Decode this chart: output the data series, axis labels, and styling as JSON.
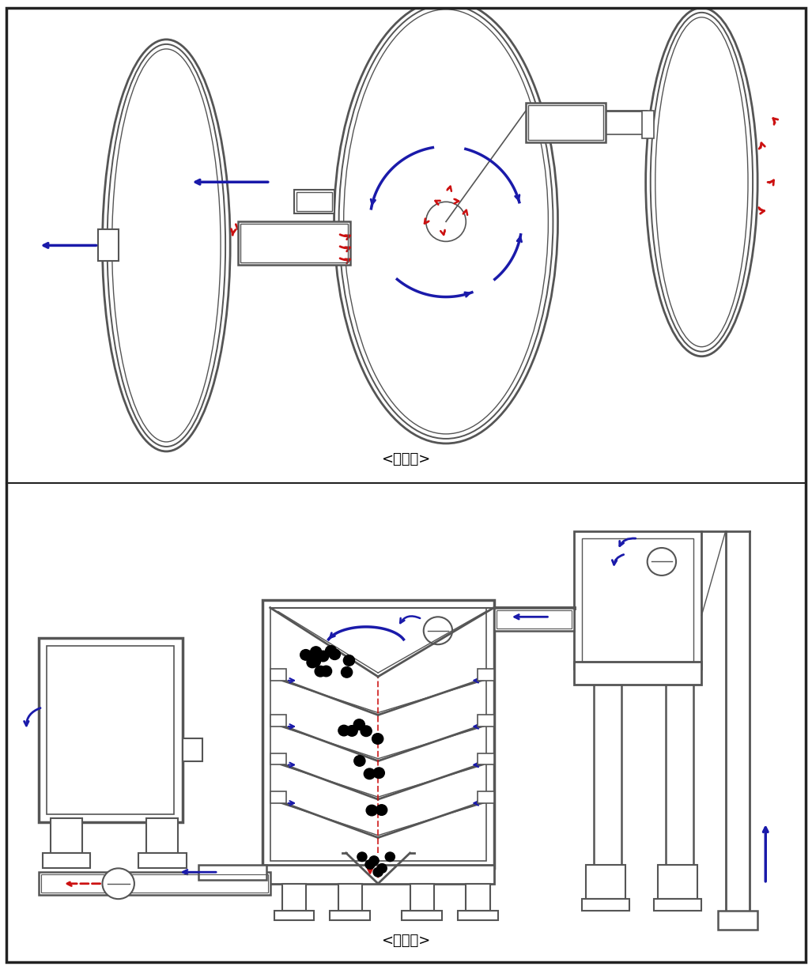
{
  "title_top": "<평면도>",
  "title_bottom": "<단면도>",
  "bg_color": "#ffffff",
  "border_color": "#222222",
  "lc": "#555555",
  "blue": "#1a1aaa",
  "red": "#cc1111"
}
